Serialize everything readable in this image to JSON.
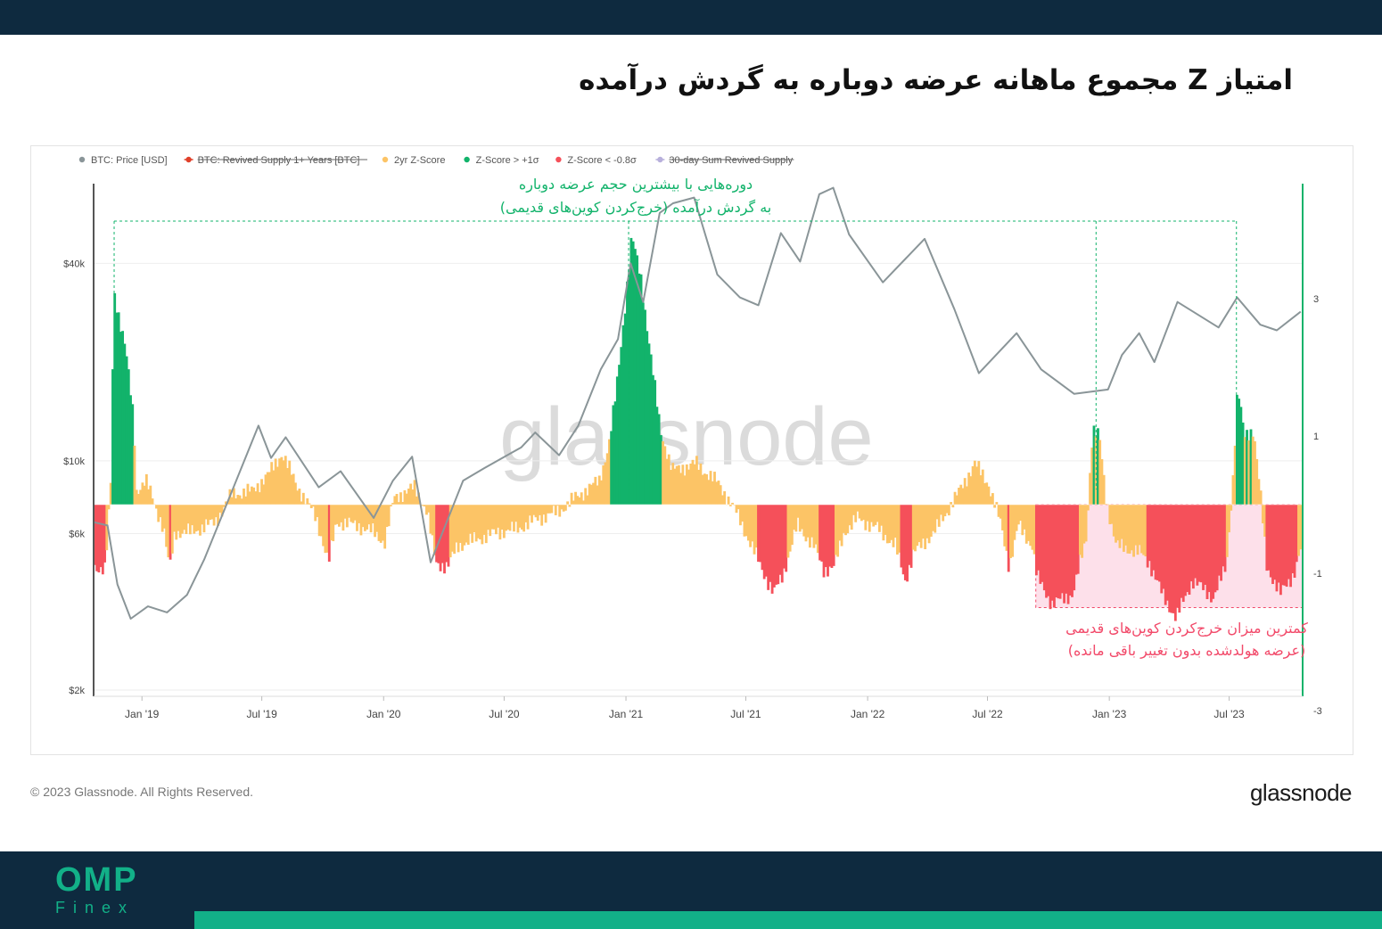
{
  "page": {
    "title": "امتیاز Z مجموع ماهانه عرضه دوباره به گردش درآمده",
    "copyright": "© 2023 Glassnode. All Rights Reserved.",
    "brand": "glassnode",
    "watermark": "glassnode",
    "footer_logo": "OMP",
    "footer_logo_sub": "Finex"
  },
  "colors": {
    "price": "#8a9598",
    "zscore": "#fcc466",
    "z_high": "#12b36b",
    "z_low": "#f5505a",
    "highlight_fill": "#fde0ea",
    "annotation_green": "#12b36b",
    "annotation_pink": "#f24a6a",
    "topbar": "#0e2a3f",
    "accent": "#12b088"
  },
  "chart_data": {
    "type": "line+bar",
    "legend": [
      {
        "label": "BTC: Price [USD]",
        "color": "#8a9598",
        "struck": false
      },
      {
        "label": "BTC: Revived Supply 1+ Years [BTC]",
        "color": "#e0402a",
        "struck": true
      },
      {
        "label": "2yr Z-Score",
        "color": "#fcc466",
        "struck": false
      },
      {
        "label": "Z-Score > +1σ",
        "color": "#12b36b",
        "struck": false
      },
      {
        "label": "Z-Score < -0.8σ",
        "color": "#f5505a",
        "struck": false
      },
      {
        "label": "30-day Sum Revived Supply",
        "color": "#b8b0dc",
        "struck": true
      }
    ],
    "x_ticks": [
      "Jan '19",
      "Jul '19",
      "Jan '20",
      "Jul '20",
      "Jan '21",
      "Jul '21",
      "Jan '22",
      "Jul '22",
      "Jan '23",
      "Jul '23"
    ],
    "x_range": [
      "2018-10-20",
      "2023-10-20"
    ],
    "y_left": {
      "scale": "log",
      "ticks": [
        "$2k",
        "$6k",
        "$10k",
        "$40k"
      ],
      "tick_values": [
        2000,
        6000,
        10000,
        40000
      ]
    },
    "y_right": {
      "ticks": [
        "3",
        "1",
        "-1",
        "-3"
      ],
      "tick_values": [
        3,
        1,
        -1,
        -3
      ]
    },
    "thresholds": {
      "high": 1,
      "low": -0.8
    },
    "price_series": [
      [
        "2018-10-20",
        6500
      ],
      [
        "2018-11-10",
        6350
      ],
      [
        "2018-11-25",
        4200
      ],
      [
        "2018-12-15",
        3300
      ],
      [
        "2019-01-10",
        3600
      ],
      [
        "2019-02-08",
        3450
      ],
      [
        "2019-03-10",
        3900
      ],
      [
        "2019-04-05",
        5000
      ],
      [
        "2019-05-15",
        7900
      ],
      [
        "2019-06-26",
        12800
      ],
      [
        "2019-07-15",
        10200
      ],
      [
        "2019-08-06",
        11800
      ],
      [
        "2019-09-25",
        8300
      ],
      [
        "2019-10-28",
        9300
      ],
      [
        "2019-12-17",
        6700
      ],
      [
        "2020-01-15",
        8700
      ],
      [
        "2020-02-13",
        10300
      ],
      [
        "2020-03-12",
        4900
      ],
      [
        "2020-04-30",
        8700
      ],
      [
        "2020-06-01",
        9500
      ],
      [
        "2020-07-27",
        11000
      ],
      [
        "2020-08-17",
        12200
      ],
      [
        "2020-09-22",
        10400
      ],
      [
        "2020-10-21",
        12800
      ],
      [
        "2020-11-24",
        19000
      ],
      [
        "2020-12-20",
        23500
      ],
      [
        "2021-01-08",
        40000
      ],
      [
        "2021-01-27",
        30500
      ],
      [
        "2021-02-21",
        57000
      ],
      [
        "2021-03-13",
        61000
      ],
      [
        "2021-04-14",
        63500
      ],
      [
        "2021-05-19",
        37000
      ],
      [
        "2021-06-22",
        31500
      ],
      [
        "2021-07-20",
        29800
      ],
      [
        "2021-08-23",
        49500
      ],
      [
        "2021-09-21",
        40500
      ],
      [
        "2021-10-20",
        65000
      ],
      [
        "2021-11-10",
        68000
      ],
      [
        "2021-12-04",
        49000
      ],
      [
        "2022-01-24",
        35000
      ],
      [
        "2022-03-28",
        47500
      ],
      [
        "2022-05-12",
        29000
      ],
      [
        "2022-06-18",
        18500
      ],
      [
        "2022-08-14",
        24500
      ],
      [
        "2022-09-20",
        19000
      ],
      [
        "2022-11-09",
        16000
      ],
      [
        "2022-12-30",
        16500
      ],
      [
        "2023-01-20",
        21000
      ],
      [
        "2023-02-15",
        24500
      ],
      [
        "2023-03-10",
        20000
      ],
      [
        "2023-04-14",
        30500
      ],
      [
        "2023-06-15",
        25500
      ],
      [
        "2023-07-13",
        31500
      ],
      [
        "2023-08-17",
        26000
      ],
      [
        "2023-09-11",
        25000
      ],
      [
        "2023-10-17",
        28500
      ]
    ],
    "zscore_series": [
      [
        "2018-10-20",
        -0.9
      ],
      [
        "2018-11-05",
        -0.95
      ],
      [
        "2018-11-13",
        0.3
      ],
      [
        "2018-11-18",
        3.1
      ],
      [
        "2018-12-05",
        2.3
      ],
      [
        "2018-12-18",
        1.2
      ],
      [
        "2018-12-22",
        0.2
      ],
      [
        "2019-01-05",
        0.35
      ],
      [
        "2019-01-15",
        0.1
      ],
      [
        "2019-02-01",
        -0.35
      ],
      [
        "2019-02-10",
        -0.95
      ],
      [
        "2019-02-18",
        -0.4
      ],
      [
        "2019-03-15",
        -0.4
      ],
      [
        "2019-04-20",
        -0.25
      ],
      [
        "2019-05-15",
        0.15
      ],
      [
        "2019-06-15",
        0.2
      ],
      [
        "2019-07-10",
        0.45
      ],
      [
        "2019-07-30",
        0.75
      ],
      [
        "2019-08-20",
        0.3
      ],
      [
        "2019-09-20",
        -0.2
      ],
      [
        "2019-10-08",
        -0.85
      ],
      [
        "2019-10-20",
        -0.25
      ],
      [
        "2019-11-20",
        -0.3
      ],
      [
        "2019-12-15",
        -0.4
      ],
      [
        "2020-01-01",
        -0.55
      ],
      [
        "2020-01-15",
        0.1
      ],
      [
        "2020-02-15",
        0.25
      ],
      [
        "2020-03-05",
        -0.1
      ],
      [
        "2020-03-18",
        -0.85
      ],
      [
        "2020-04-05",
        -0.9
      ],
      [
        "2020-04-20",
        -0.6
      ],
      [
        "2020-05-20",
        -0.5
      ],
      [
        "2020-06-20",
        -0.4
      ],
      [
        "2020-07-20",
        -0.35
      ],
      [
        "2020-08-20",
        -0.2
      ],
      [
        "2020-09-20",
        -0.1
      ],
      [
        "2020-10-15",
        0.1
      ],
      [
        "2020-11-20",
        0.35
      ],
      [
        "2020-12-05",
        0.9
      ],
      [
        "2020-12-15",
        1.6
      ],
      [
        "2020-12-28",
        2.8
      ],
      [
        "2021-01-08",
        3.9
      ],
      [
        "2021-01-22",
        3.3
      ],
      [
        "2021-02-05",
        2.2
      ],
      [
        "2021-02-20",
        1.1
      ],
      [
        "2021-03-10",
        0.5
      ],
      [
        "2021-04-15",
        0.6
      ],
      [
        "2021-05-20",
        0.3
      ],
      [
        "2021-06-20",
        -0.2
      ],
      [
        "2021-07-05",
        -0.55
      ],
      [
        "2021-07-20",
        -0.85
      ],
      [
        "2021-08-10",
        -1.3
      ],
      [
        "2021-08-25",
        -1.0
      ],
      [
        "2021-09-15",
        -0.3
      ],
      [
        "2021-10-10",
        -0.6
      ],
      [
        "2021-10-25",
        -0.95
      ],
      [
        "2021-11-10",
        -0.9
      ],
      [
        "2021-11-25",
        -0.4
      ],
      [
        "2021-12-15",
        -0.2
      ],
      [
        "2022-01-15",
        -0.35
      ],
      [
        "2022-02-10",
        -0.6
      ],
      [
        "2022-02-25",
        -1.1
      ],
      [
        "2022-03-10",
        -0.7
      ],
      [
        "2022-04-10",
        -0.4
      ],
      [
        "2022-05-15",
        0.15
      ],
      [
        "2022-06-10",
        0.6
      ],
      [
        "2022-07-01",
        0.3
      ],
      [
        "2022-07-20",
        -0.3
      ],
      [
        "2022-08-01",
        -0.9
      ],
      [
        "2022-08-15",
        -0.3
      ],
      [
        "2022-09-05",
        -0.6
      ],
      [
        "2022-09-12",
        -1.05
      ],
      [
        "2022-10-05",
        -1.45
      ],
      [
        "2022-11-05",
        -1.3
      ],
      [
        "2022-11-25",
        -0.5
      ],
      [
        "2022-12-05",
        1.1
      ],
      [
        "2022-12-15",
        1.0
      ],
      [
        "2022-12-25",
        0.1
      ],
      [
        "2023-01-10",
        -0.6
      ],
      [
        "2023-02-15",
        -0.7
      ],
      [
        "2023-03-01",
        -0.85
      ],
      [
        "2023-03-20",
        -1.3
      ],
      [
        "2023-04-10",
        -1.65
      ],
      [
        "2023-05-05",
        -1.1
      ],
      [
        "2023-06-05",
        -1.35
      ],
      [
        "2023-06-25",
        -0.9
      ],
      [
        "2023-07-05",
        0.4
      ],
      [
        "2023-07-12",
        1.7
      ],
      [
        "2023-07-22",
        1.0
      ],
      [
        "2023-08-05",
        1.1
      ],
      [
        "2023-08-15",
        0.2
      ],
      [
        "2023-08-25",
        -0.9
      ],
      [
        "2023-09-15",
        -1.3
      ],
      [
        "2023-10-05",
        -1.0
      ],
      [
        "2023-10-17",
        -0.6
      ]
    ],
    "highlights": {
      "high_markers": [
        "2018-11-20",
        "2021-01-05",
        "2022-12-12",
        "2023-07-12"
      ],
      "low_region": [
        "2022-09-12",
        "2023-10-20"
      ]
    },
    "annotations": {
      "high_line1": "دوره‌هایی با بیشترین حجم عرضه دوباره",
      "high_line2": "به گردش درآمده (خرج‌کردن کوین‌های قدیمی)",
      "low_line1": "کمترین میزان خرج‌کردن کوین‌های قدیمی",
      "low_line2": "(عرضه هولدشده بدون تغییر باقی مانده)"
    }
  }
}
